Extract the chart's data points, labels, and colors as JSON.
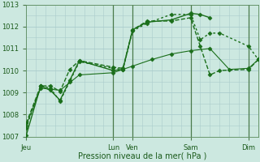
{
  "background_color": "#cce8e0",
  "grid_color": "#aacccc",
  "line_color": "#1a6e1a",
  "title": "Pression niveau de la mer( hPa )",
  "ylim": [
    1007,
    1013
  ],
  "yticks": [
    1007,
    1008,
    1009,
    1010,
    1011,
    1012,
    1013
  ],
  "x_day_labels": [
    "Jeu",
    "Lun",
    "Ven",
    "Sam",
    "Dim"
  ],
  "x_day_positions": [
    0,
    9,
    11,
    17,
    23
  ],
  "xlim": [
    0,
    24
  ],
  "series": [
    {
      "x": [
        0,
        1.5,
        2.5,
        3.5,
        4.5,
        5.5,
        9,
        10,
        11,
        12.5,
        15,
        17,
        18,
        19,
        20,
        23,
        24
      ],
      "y": [
        1007.4,
        1009.3,
        1009.2,
        1008.6,
        1009.5,
        1010.4,
        1010.1,
        1010.05,
        1011.8,
        1012.15,
        1012.55,
        1012.55,
        1011.4,
        1011.7,
        1011.7,
        1011.1,
        1010.5
      ],
      "style": "dotted"
    },
    {
      "x": [
        0,
        1.5,
        2.5,
        3.5,
        4.5,
        5.5,
        9,
        10,
        11,
        12.5,
        15,
        17,
        18,
        19
      ],
      "y": [
        1007.05,
        1009.3,
        1009.1,
        1008.65,
        1009.55,
        1010.45,
        1010.0,
        1010.05,
        1011.85,
        1012.2,
        1012.3,
        1012.6,
        1012.55,
        1012.4
      ],
      "style": "solid"
    },
    {
      "x": [
        0,
        1.5,
        2.5,
        3.5,
        4.5,
        5.5,
        9,
        10,
        11,
        12.5,
        15,
        17,
        18,
        19,
        20,
        23,
        24
      ],
      "y": [
        1007.6,
        1009.3,
        1009.3,
        1009.05,
        1010.05,
        1010.45,
        1010.15,
        1010.1,
        1011.85,
        1012.25,
        1012.25,
        1012.4,
        1011.1,
        1009.8,
        1010.0,
        1010.05,
        1010.5
      ],
      "style": "dashed"
    },
    {
      "x": [
        0,
        1.5,
        3.5,
        5.5,
        9,
        11,
        13,
        15,
        17,
        19,
        21,
        23,
        24
      ],
      "y": [
        1007.5,
        1009.2,
        1009.1,
        1009.8,
        1009.9,
        1010.2,
        1010.5,
        1010.75,
        1010.9,
        1011.0,
        1010.05,
        1010.1,
        1010.5
      ],
      "style": "solid_thin"
    }
  ],
  "vlines_x": [
    9,
    11,
    17,
    23
  ],
  "marker": "D",
  "marker_size": 2.5
}
